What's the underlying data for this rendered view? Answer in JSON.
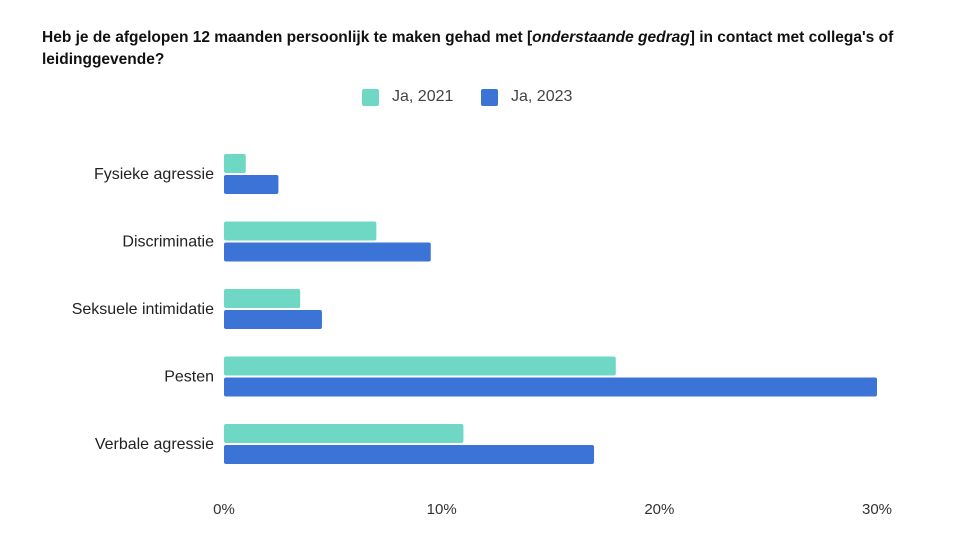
{
  "title": {
    "prefix": "Heb je de afgelopen 12 maanden persoonlijk te maken gehad met [",
    "italic": "onderstaande gedrag",
    "suffix": "] in contact met collega's of leidinggevende?"
  },
  "chart_data": {
    "type": "bar",
    "orientation": "horizontal",
    "categories": [
      "Fysieke agressie",
      "Discriminatie",
      "Seksuele intimidatie",
      "Pesten",
      "Verbale agressie"
    ],
    "series": [
      {
        "name": "Ja, 2021",
        "color": "#6fd8c4",
        "values": [
          1.0,
          7.0,
          3.5,
          18.0,
          11.0
        ]
      },
      {
        "name": "Ja, 2023",
        "color": "#3c73d6",
        "values": [
          2.5,
          9.5,
          4.5,
          30.0,
          17.0
        ]
      }
    ],
    "xlim": [
      0,
      30
    ],
    "xticks": [
      "0%",
      "10%",
      "20%",
      "30%"
    ],
    "legend_position": "top",
    "grid": false
  }
}
